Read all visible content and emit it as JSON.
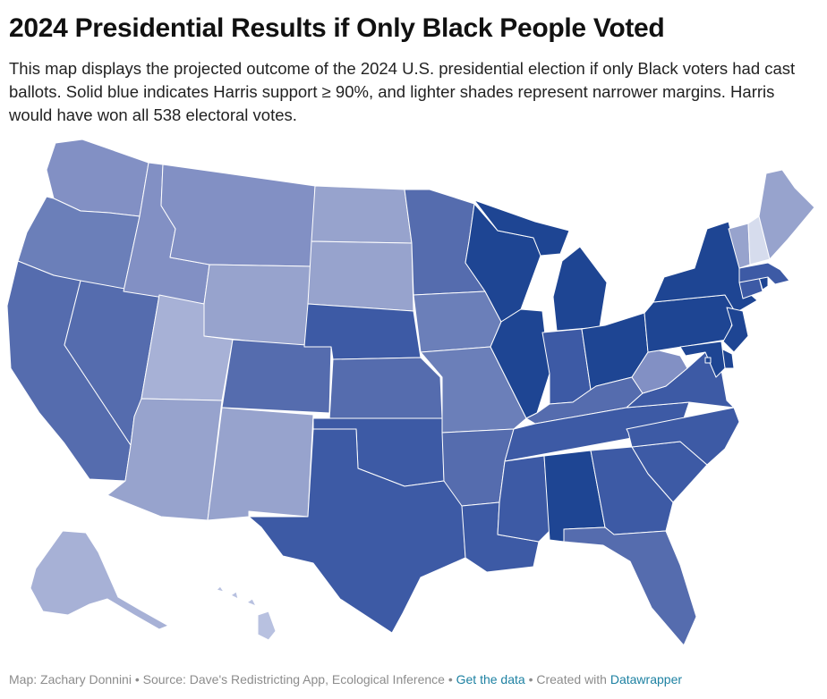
{
  "header": {
    "title": "2024 Presidential Results if Only Black People Voted",
    "description": "This map displays the projected outcome of the 2024 U.S. presidential election if only Black voters had cast ballots. Solid blue indicates Harris support ≥ 90%, and lighter shades represent narrower margins. Harris would have won all 538 electoral votes."
  },
  "map": {
    "type": "choropleth",
    "region": "United States (by state)",
    "colors": {
      "tier_1": "#1e4593",
      "tier_2": "#3d5aa5",
      "tier_3": "#556cae",
      "tier_4": "#6b7fb9",
      "tier_5": "#8290c4",
      "tier_6": "#97a3cd",
      "tier_7": "#a7b1d6",
      "tier_8": "#b8c1e0",
      "tier_9": "#d6dced"
    },
    "states": {
      "WA": "tier_5",
      "OR": "tier_4",
      "CA": "tier_3",
      "NV": "tier_3",
      "ID": "tier_5",
      "MT": "tier_5",
      "WY": "tier_6",
      "UT": "tier_7",
      "AZ": "tier_6",
      "NM": "tier_6",
      "CO": "tier_3",
      "ND": "tier_6",
      "SD": "tier_6",
      "NE": "tier_2",
      "KS": "tier_3",
      "OK": "tier_2",
      "TX": "tier_2",
      "MN": "tier_3",
      "IA": "tier_4",
      "MO": "tier_4",
      "AR": "tier_3",
      "LA": "tier_2",
      "WI": "tier_1",
      "IL": "tier_1",
      "MI": "tier_1",
      "IN": "tier_2",
      "OH": "tier_1",
      "KY": "tier_3",
      "TN": "tier_2",
      "MS": "tier_2",
      "AL": "tier_1",
      "GA": "tier_2",
      "FL": "tier_3",
      "SC": "tier_2",
      "NC": "tier_2",
      "VA": "tier_2",
      "WV": "tier_5",
      "PA": "tier_1",
      "NY": "tier_1",
      "NJ": "tier_1",
      "DE": "tier_1",
      "MD": "tier_1",
      "DC": "tier_1",
      "CT": "tier_2",
      "RI": "tier_1",
      "MA": "tier_2",
      "VT": "tier_6",
      "NH": "tier_9",
      "ME": "tier_6",
      "AK": "tier_7",
      "HI": "tier_8"
    }
  },
  "footer": {
    "credit": "Map: Zachary Donnini",
    "separator": " • ",
    "source": "Source: Dave's Redistricting App, Ecological Inference",
    "get_data": "Get the data",
    "created_with": "Created with",
    "tool": "Datawrapper"
  }
}
